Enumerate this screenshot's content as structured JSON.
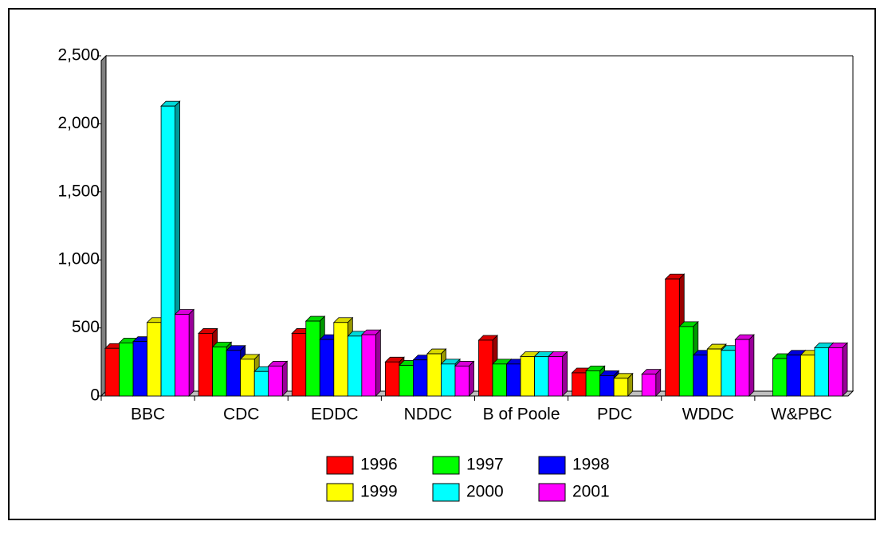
{
  "chart_data": {
    "type": "bar3d",
    "categories": [
      "BBC",
      "CDC",
      "EDDC",
      "NDDC",
      "B of Poole",
      "PDC",
      "WDDC",
      "W&PBC"
    ],
    "series": [
      {
        "name": "1996",
        "color": "#ff0000",
        "values": [
          350,
          460,
          460,
          250,
          410,
          170,
          860,
          null
        ]
      },
      {
        "name": "1997",
        "color": "#00ff00",
        "values": [
          390,
          360,
          550,
          225,
          235,
          185,
          510,
          275
        ]
      },
      {
        "name": "1998",
        "color": "#0000ff",
        "values": [
          400,
          335,
          415,
          265,
          235,
          150,
          300,
          300
        ]
      },
      {
        "name": "1999",
        "color": "#ffff00",
        "values": [
          540,
          270,
          540,
          310,
          290,
          130,
          345,
          300
        ]
      },
      {
        "name": "2000",
        "color": "#00ffff",
        "values": [
          2130,
          180,
          440,
          235,
          290,
          null,
          335,
          355
        ]
      },
      {
        "name": "2001",
        "color": "#ff00ff",
        "values": [
          600,
          220,
          450,
          220,
          290,
          160,
          415,
          355
        ]
      }
    ],
    "ylim": [
      0,
      2500
    ],
    "yticks": [
      0,
      500,
      {
        "value": 1000,
        "label": "1,000"
      },
      {
        "value": 1500,
        "label": "1,500"
      },
      {
        "value": 2000,
        "label": "2,000"
      },
      {
        "value": 2500,
        "label": "2,500"
      }
    ]
  }
}
